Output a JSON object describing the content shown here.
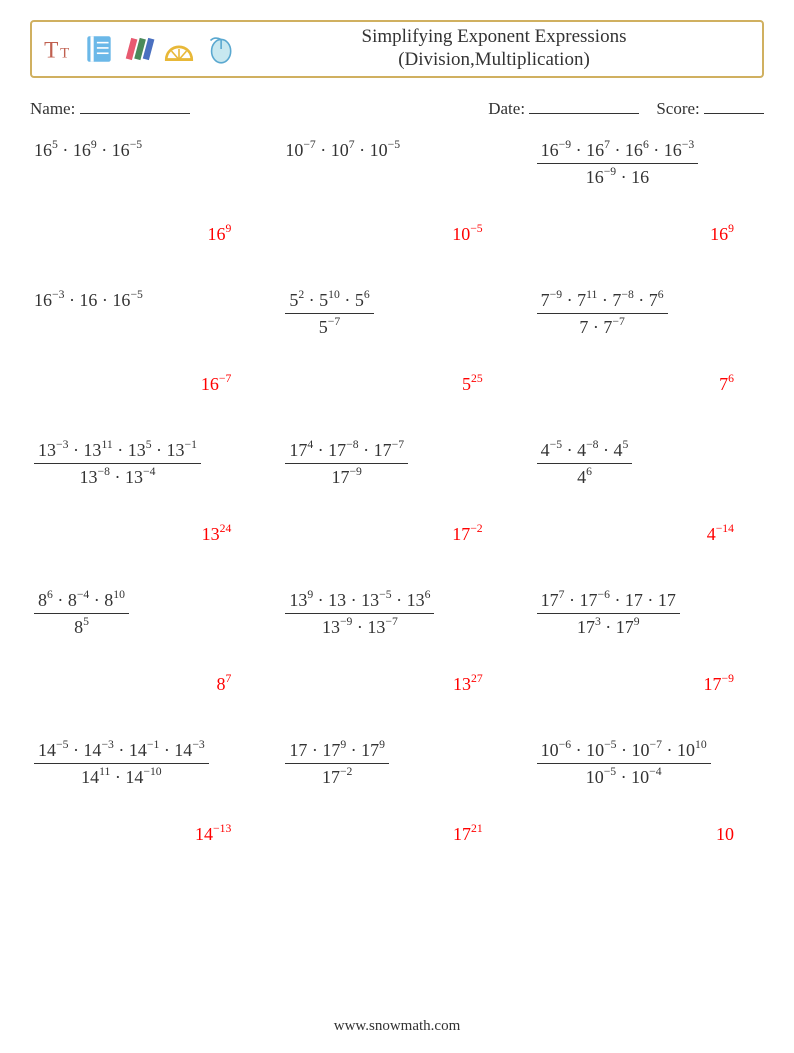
{
  "colors": {
    "border": "#d0b060",
    "answer": "#ff0000",
    "text": "#333333"
  },
  "title_line1": "Simplifying Exponent Expressions",
  "title_line2": "(Division,Multiplication)",
  "labels": {
    "name": "Name:",
    "date": "Date:",
    "score": "Score:"
  },
  "footer": "www.snowmath.com",
  "problems": [
    {
      "type": "flat",
      "terms": [
        [
          "16",
          "5"
        ],
        [
          "16",
          "9"
        ],
        [
          "16",
          "-5"
        ]
      ],
      "ans": [
        "16",
        "9"
      ]
    },
    {
      "type": "flat",
      "terms": [
        [
          "10",
          "-7"
        ],
        [
          "10",
          "7"
        ],
        [
          "10",
          "-5"
        ]
      ],
      "ans": [
        "10",
        "-5"
      ]
    },
    {
      "type": "frac",
      "num": [
        [
          "16",
          "-9"
        ],
        [
          "16",
          "7"
        ],
        [
          "16",
          "6"
        ],
        [
          "16",
          "-3"
        ]
      ],
      "den": [
        [
          "16",
          "-9"
        ],
        [
          "16",
          ""
        ]
      ],
      "ans": [
        "16",
        "9"
      ]
    },
    {
      "type": "flat",
      "terms": [
        [
          "16",
          "-3"
        ],
        [
          "16",
          ""
        ],
        [
          "16",
          "-5"
        ]
      ],
      "ans": [
        "16",
        "-7"
      ]
    },
    {
      "type": "frac",
      "num": [
        [
          "5",
          "2"
        ],
        [
          "5",
          "10"
        ],
        [
          "5",
          "6"
        ]
      ],
      "den": [
        [
          "5",
          "-7"
        ]
      ],
      "ans": [
        "5",
        "25"
      ]
    },
    {
      "type": "frac",
      "num": [
        [
          "7",
          "-9"
        ],
        [
          "7",
          "11"
        ],
        [
          "7",
          "-8"
        ],
        [
          "7",
          "6"
        ]
      ],
      "den": [
        [
          "7",
          ""
        ],
        [
          "7",
          "-7"
        ]
      ],
      "ans": [
        "7",
        "6"
      ]
    },
    {
      "type": "frac",
      "num": [
        [
          "13",
          "-3"
        ],
        [
          "13",
          "11"
        ],
        [
          "13",
          "5"
        ],
        [
          "13",
          "-1"
        ]
      ],
      "den": [
        [
          "13",
          "-8"
        ],
        [
          "13",
          "-4"
        ]
      ],
      "ans": [
        "13",
        "24"
      ]
    },
    {
      "type": "frac",
      "num": [
        [
          "17",
          "4"
        ],
        [
          "17",
          "-8"
        ],
        [
          "17",
          "-7"
        ]
      ],
      "den": [
        [
          "17",
          "-9"
        ]
      ],
      "ans": [
        "17",
        "-2"
      ]
    },
    {
      "type": "frac",
      "num": [
        [
          "4",
          "-5"
        ],
        [
          "4",
          "-8"
        ],
        [
          "4",
          "5"
        ]
      ],
      "den": [
        [
          "4",
          "6"
        ]
      ],
      "ans": [
        "4",
        "-14"
      ]
    },
    {
      "type": "frac",
      "num": [
        [
          "8",
          "6"
        ],
        [
          "8",
          "-4"
        ],
        [
          "8",
          "10"
        ]
      ],
      "den": [
        [
          "8",
          "5"
        ]
      ],
      "ans": [
        "8",
        "7"
      ]
    },
    {
      "type": "frac",
      "num": [
        [
          "13",
          "9"
        ],
        [
          "13",
          ""
        ],
        [
          "13",
          "-5"
        ],
        [
          "13",
          "6"
        ]
      ],
      "den": [
        [
          "13",
          "-9"
        ],
        [
          "13",
          "-7"
        ]
      ],
      "ans": [
        "13",
        "27"
      ]
    },
    {
      "type": "frac",
      "num": [
        [
          "17",
          "7"
        ],
        [
          "17",
          "-6"
        ],
        [
          "17",
          ""
        ],
        [
          "17",
          ""
        ]
      ],
      "den": [
        [
          "17",
          "3"
        ],
        [
          "17",
          "9"
        ]
      ],
      "ans": [
        "17",
        "-9"
      ]
    },
    {
      "type": "frac",
      "num": [
        [
          "14",
          "-5"
        ],
        [
          "14",
          "-3"
        ],
        [
          "14",
          "-1"
        ],
        [
          "14",
          "-3"
        ]
      ],
      "den": [
        [
          "14",
          "11"
        ],
        [
          "14",
          "-10"
        ]
      ],
      "ans": [
        "14",
        "-13"
      ]
    },
    {
      "type": "frac",
      "num": [
        [
          "17",
          ""
        ],
        [
          "17",
          "9"
        ],
        [
          "17",
          "9"
        ]
      ],
      "den": [
        [
          "17",
          "-2"
        ]
      ],
      "ans": [
        "17",
        "21"
      ]
    },
    {
      "type": "frac",
      "num": [
        [
          "10",
          "-6"
        ],
        [
          "10",
          "-5"
        ],
        [
          "10",
          "-7"
        ],
        [
          "10",
          "10"
        ]
      ],
      "den": [
        [
          "10",
          "-5"
        ],
        [
          "10",
          "-4"
        ]
      ],
      "ans": [
        "10",
        ""
      ]
    }
  ]
}
